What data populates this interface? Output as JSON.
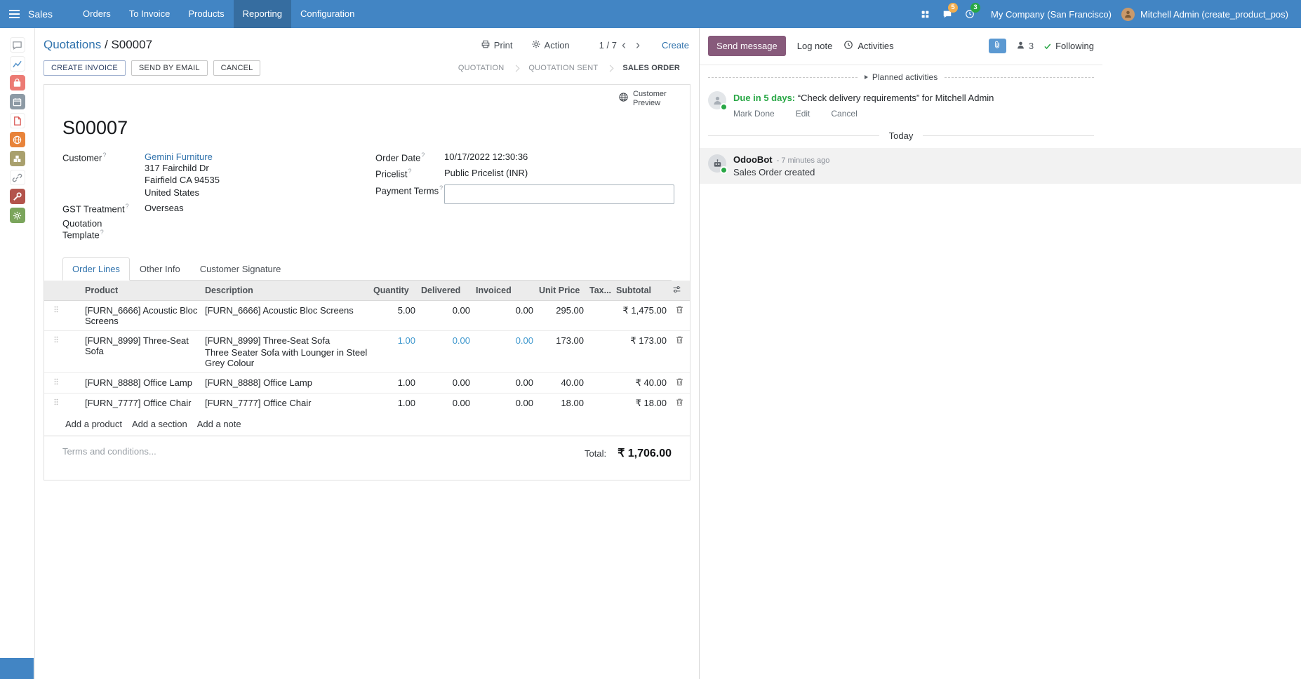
{
  "colors": {
    "navbar_bg": "#4285c4",
    "primary_btn": "#875A7B",
    "link": "#3173ad",
    "edited_value": "#3d97cd",
    "success": "#28a745",
    "badge_warning": "#f0ad4e",
    "table_header_bg": "#ececec",
    "message_bg": "#f2f2f2"
  },
  "navbar": {
    "app_name": "Sales",
    "menus": [
      "Orders",
      "To Invoice",
      "Products",
      "Reporting",
      "Configuration"
    ],
    "active_menu": "Reporting",
    "message_badge": "5",
    "activity_badge": "3",
    "company": "My Company (San Francisco)",
    "user": "Mitchell Admin (create_product_pos)"
  },
  "sidebar": {
    "apps": [
      {
        "name": "discuss",
        "shape": "bubble",
        "bg": "#ffffff",
        "fg": "#8a9097"
      },
      {
        "name": "dashboards",
        "shape": "chart",
        "bg": "#ffffff",
        "fg": "#4e8fc9"
      },
      {
        "name": "point-of-sale",
        "shape": "bag",
        "bg": "#ec7b74",
        "fg": "#ffffff"
      },
      {
        "name": "calendar",
        "shape": "calendar",
        "bg": "#8d9aa5",
        "fg": "#ffffff"
      },
      {
        "name": "documents",
        "shape": "doc",
        "bg": "#ffffff",
        "fg": "#d9534f"
      },
      {
        "name": "website",
        "shape": "globe",
        "bg": "#e8833a",
        "fg": "#ffffff"
      },
      {
        "name": "inventory",
        "shape": "boxes",
        "bg": "#a9a06d",
        "fg": "#ffffff"
      },
      {
        "name": "links",
        "shape": "link",
        "bg": "#ffffff",
        "fg": "#8a9097"
      },
      {
        "name": "manufacturing",
        "shape": "wrench",
        "bg": "#b3544c",
        "fg": "#ffffff"
      },
      {
        "name": "settings",
        "shape": "gear",
        "bg": "#7ba55c",
        "fg": "#ffffff"
      }
    ]
  },
  "breadcrumb": {
    "parent": "Quotations",
    "separator": "/",
    "current": "S00007"
  },
  "control_panel": {
    "print": "Print",
    "action": "Action",
    "pager": "1 / 7",
    "prev": "‹",
    "next": "›",
    "create": "Create"
  },
  "status_buttons": {
    "create_invoice": "CREATE INVOICE",
    "send_by_email": "SEND BY EMAIL",
    "cancel": "CANCEL"
  },
  "statusbar": {
    "steps": [
      "QUOTATION",
      "QUOTATION SENT",
      "SALES ORDER"
    ],
    "active": "SALES ORDER"
  },
  "sheet": {
    "preview_button": "Customer Preview",
    "title": "S00007",
    "help_marker": "?",
    "fields": {
      "customer_label": "Customer",
      "customer": "Gemini Furniture",
      "address": [
        "317 Fairchild Dr",
        "Fairfield CA 94535",
        "United States"
      ],
      "gst_label": "GST Treatment",
      "gst_value": "Overseas",
      "template_label": "Quotation Template",
      "order_date_label": "Order Date",
      "order_date": "10/17/2022 12:30:36",
      "pricelist_label": "Pricelist",
      "pricelist": "Public Pricelist (INR)",
      "payment_terms_label": "Payment Terms"
    },
    "tabs": [
      "Order Lines",
      "Other Info",
      "Customer Signature"
    ],
    "table": {
      "headers": [
        "Product",
        "Description",
        "Quantity",
        "Delivered",
        "Invoiced",
        "Unit Price",
        "Tax...",
        "Subtotal"
      ],
      "rows": [
        {
          "product": "[FURN_6666] Acoustic Bloc Screens",
          "description": "[FURN_6666] Acoustic Bloc Screens",
          "quantity": "5.00",
          "delivered": "0.00",
          "invoiced": "0.00",
          "unit_price": "295.00",
          "subtotal": "₹ 1,475.00"
        },
        {
          "product": "[FURN_8999] Three-Seat Sofa",
          "description": "[FURN_8999] Three-Seat Sofa",
          "description2": "Three Seater Sofa with Lounger in Steel Grey Colour",
          "quantity": "1.00",
          "delivered": "0.00",
          "invoiced": "0.00",
          "unit_price": "173.00",
          "subtotal": "₹ 173.00"
        },
        {
          "product": "[FURN_8888] Office Lamp",
          "description": "[FURN_8888] Office Lamp",
          "quantity": "1.00",
          "delivered": "0.00",
          "invoiced": "0.00",
          "unit_price": "40.00",
          "subtotal": "₹ 40.00"
        },
        {
          "product": "[FURN_7777] Office Chair",
          "description": "[FURN_7777] Office Chair",
          "quantity": "1.00",
          "delivered": "0.00",
          "invoiced": "0.00",
          "unit_price": "18.00",
          "subtotal": "₹ 18.00"
        }
      ],
      "add_links": [
        "Add a product",
        "Add a section",
        "Add a note"
      ]
    },
    "terms_placeholder": "Terms and conditions...",
    "total_label": "Total:",
    "total_amount": "₹ 1,706.00"
  },
  "chatter": {
    "send_message": "Send message",
    "log_note": "Log note",
    "activities": "Activities",
    "followers_count": "3",
    "following": "Following",
    "planned_header": "Planned activities",
    "activity": {
      "due": "Due in 5 days:",
      "summary": "“Check delivery requirements”",
      "assignee": "for Mitchell Admin",
      "mark_done": "Mark Done",
      "edit": "Edit",
      "cancel": "Cancel"
    },
    "today": "Today",
    "message": {
      "author": "OdooBot",
      "time": "- 7 minutes ago",
      "body": "Sales Order created"
    }
  }
}
